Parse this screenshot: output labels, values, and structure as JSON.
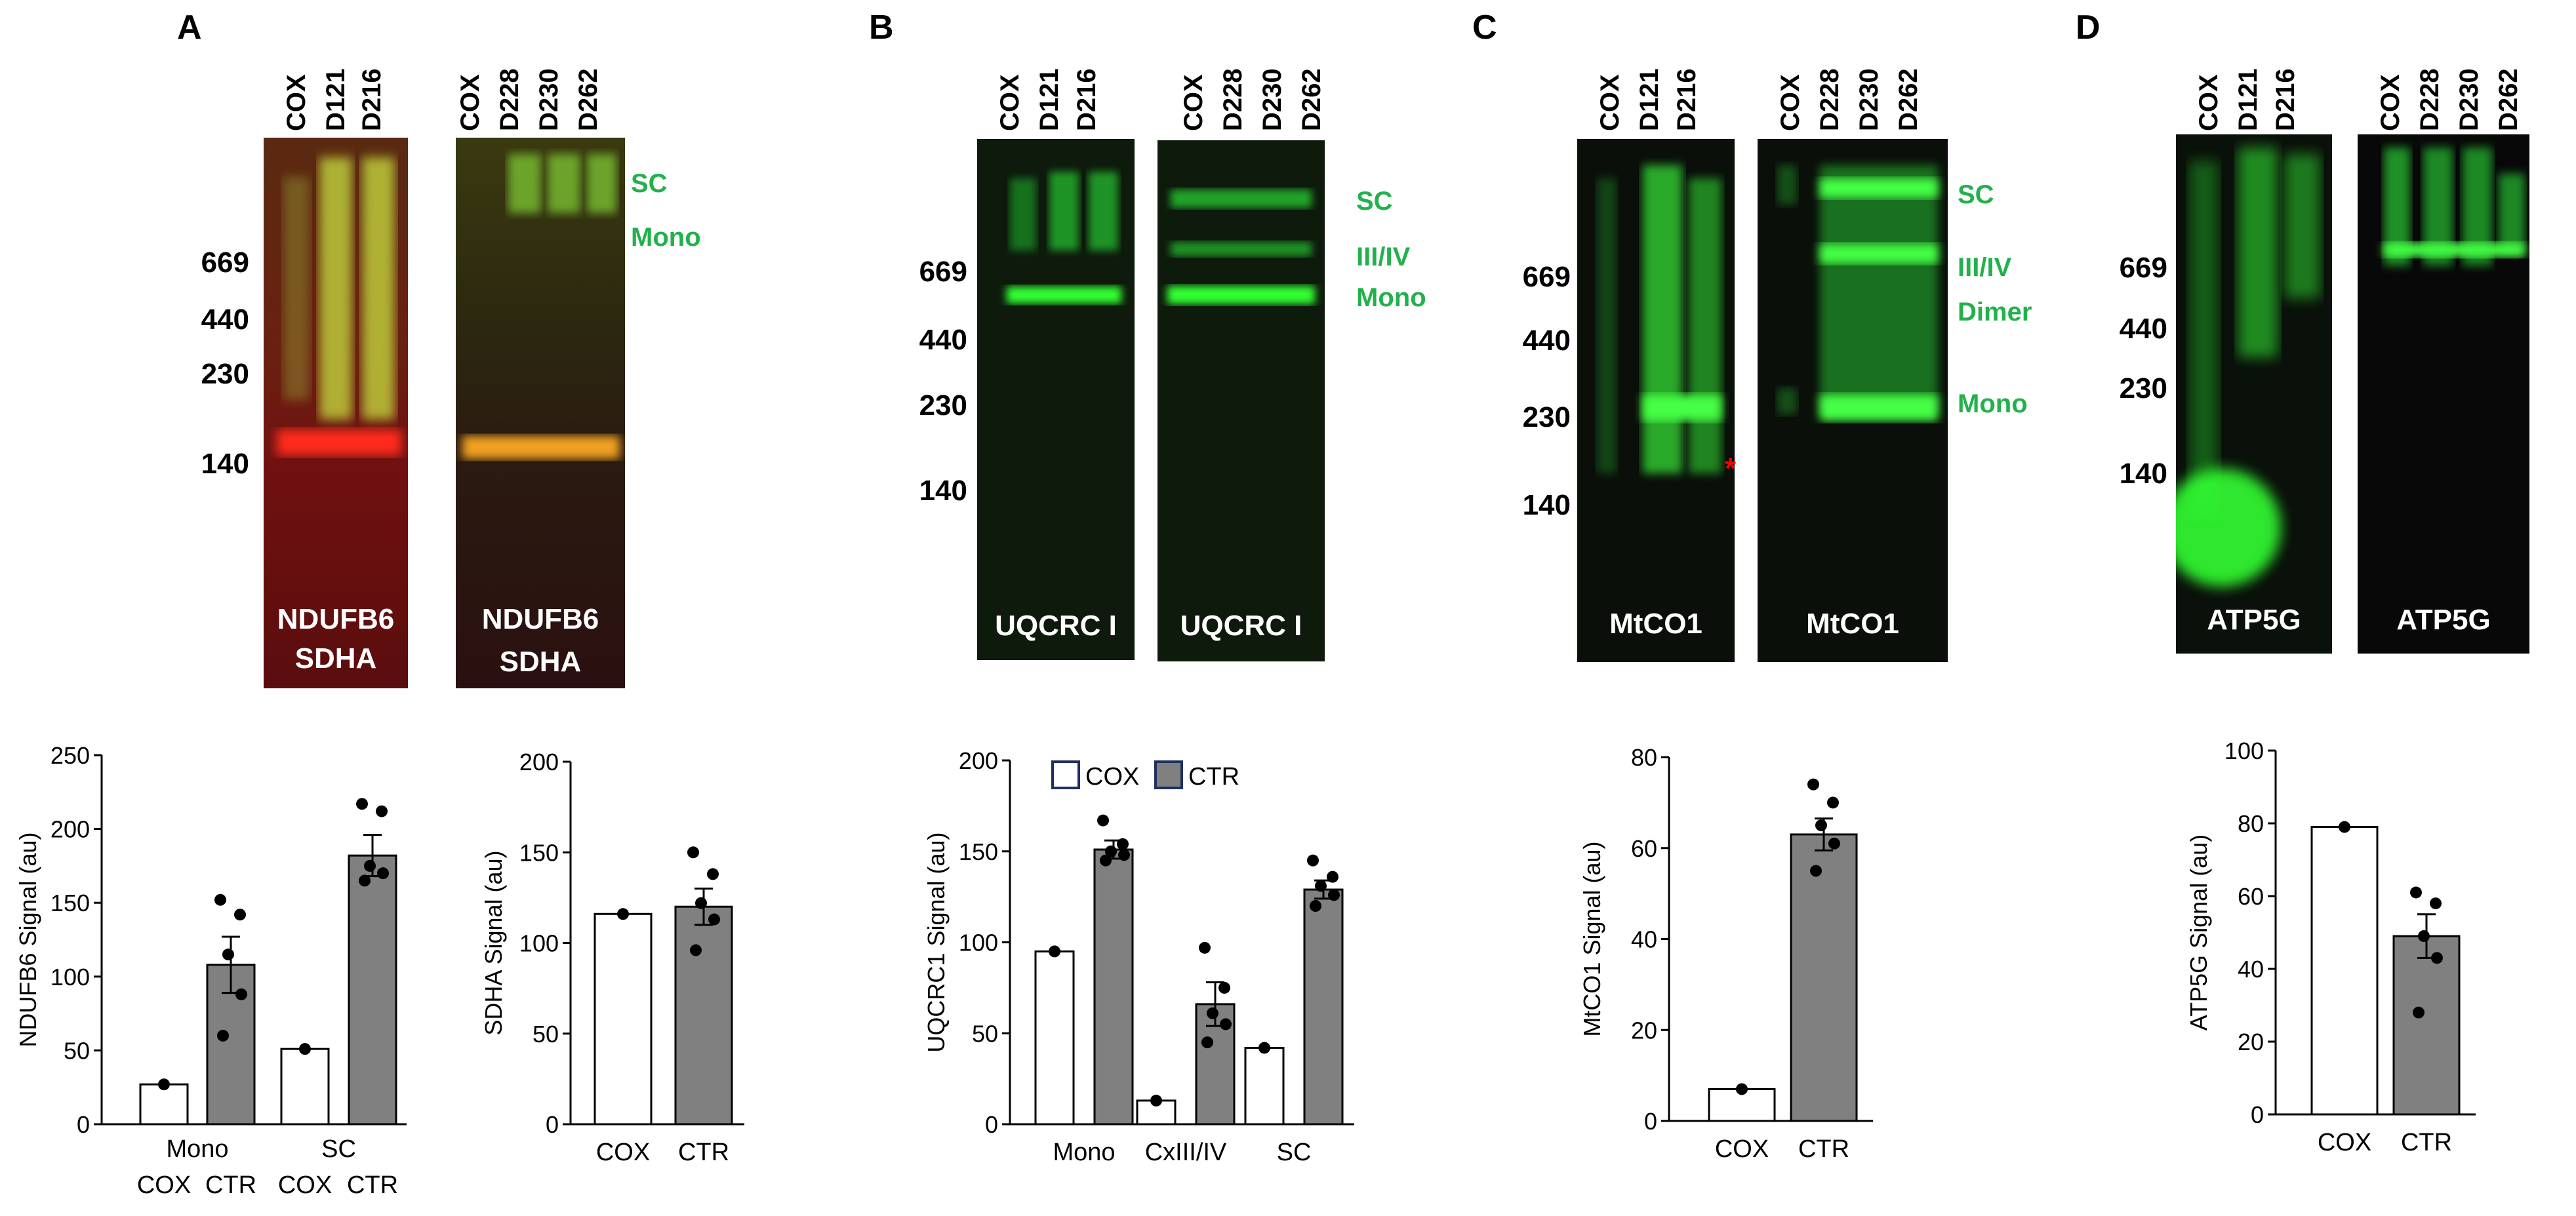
{
  "panels": [
    {
      "letter": "A"
    },
    {
      "letter": "B"
    },
    {
      "letter": "C"
    },
    {
      "letter": "D"
    }
  ],
  "lanes": {
    "left": [
      "COX",
      "D121",
      "D216"
    ],
    "right": [
      "COX",
      "D228",
      "D230",
      "D262"
    ]
  },
  "mw_markers": {
    "A": [
      "669",
      "440",
      "230",
      "140"
    ],
    "B": [
      "669",
      "440",
      "230",
      "140"
    ],
    "C": [
      "669",
      "440",
      "230",
      "140"
    ],
    "D": [
      "669",
      "440",
      "230",
      "140"
    ]
  },
  "band_labels": {
    "A": [
      "SC",
      "Mono"
    ],
    "B": [
      "SC",
      "III/IV",
      "Mono"
    ],
    "C": [
      "SC",
      "III/IV",
      "Dimer",
      "Mono"
    ]
  },
  "blot_labels": {
    "A1": [
      "NDUFB6",
      "SDHA"
    ],
    "A2": [
      "NDUFB6",
      "SDHA"
    ],
    "B1": [
      "UQCRC I"
    ],
    "B2": [
      "UQCRC I"
    ],
    "C1": [
      "MtCO1"
    ],
    "C2": [
      "MtCO1"
    ],
    "D1": [
      "ATP5G"
    ],
    "D2": [
      "ATP5G"
    ]
  },
  "colors": {
    "accent_green": "#22b14c",
    "bar_cox": "#ffffff",
    "bar_ctr": "#808080",
    "blot_green": "#00ff00",
    "marker_red": "#ff0000"
  },
  "chart_data": [
    {
      "type": "bar",
      "ylabel": "NDUFB6 Signal (au)",
      "ylim": [
        0,
        250
      ],
      "yticks": [
        0,
        50,
        100,
        150,
        200,
        250
      ],
      "groups": [
        "Mono",
        "SC"
      ],
      "categories": [
        "COX",
        "CTR",
        "COX",
        "CTR"
      ],
      "values": [
        27,
        108,
        51,
        182
      ],
      "error": [
        0,
        19,
        0,
        14
      ],
      "points": [
        [
          27
        ],
        [
          152,
          142,
          115,
          88,
          60
        ],
        [
          51
        ],
        [
          217,
          212,
          175,
          170,
          165
        ]
      ]
    },
    {
      "type": "bar",
      "ylabel": "SDHA Signal (au)",
      "ylim": [
        0,
        200
      ],
      "yticks": [
        0,
        50,
        100,
        150,
        200
      ],
      "categories": [
        "COX",
        "CTR"
      ],
      "values": [
        116,
        120
      ],
      "error": [
        0,
        10
      ],
      "points": [
        [
          116
        ],
        [
          150,
          138,
          122,
          113,
          96
        ]
      ]
    },
    {
      "type": "bar",
      "ylabel": "UQCRC1 Signal (au)",
      "ylim": [
        0,
        200
      ],
      "yticks": [
        0,
        50,
        100,
        150,
        200
      ],
      "legend": [
        "COX",
        "CTR"
      ],
      "categories": [
        "Mono",
        "CxIII/IV",
        "SC"
      ],
      "values": [
        [
          95,
          151
        ],
        [
          13,
          66
        ],
        [
          42,
          129
        ]
      ],
      "error": [
        [
          0,
          5
        ],
        [
          0,
          12
        ],
        [
          0,
          5
        ]
      ],
      "points": [
        [
          [
            95
          ],
          [
            167,
            154,
            150,
            148,
            145
          ]
        ],
        [
          [
            13
          ],
          [
            97,
            75,
            61,
            55,
            45
          ]
        ],
        [
          [
            42
          ],
          [
            145,
            136,
            131,
            126,
            120
          ]
        ]
      ]
    },
    {
      "type": "bar",
      "ylabel": "MtCO1 Signal (au)",
      "ylim": [
        0,
        80
      ],
      "yticks": [
        0,
        20,
        40,
        60,
        80
      ],
      "categories": [
        "COX",
        "CTR"
      ],
      "values": [
        7,
        63
      ],
      "error": [
        0,
        3.5
      ],
      "points": [
        [
          7
        ],
        [
          74,
          70,
          65,
          61,
          55
        ]
      ]
    },
    {
      "type": "bar",
      "ylabel": "ATP5G Signal (au)",
      "ylim": [
        0,
        100
      ],
      "yticks": [
        0,
        20,
        40,
        60,
        80,
        100
      ],
      "categories": [
        "COX",
        "CTR"
      ],
      "values": [
        79,
        49
      ],
      "error": [
        0,
        6
      ],
      "points": [
        [
          79
        ],
        [
          61,
          58,
          49,
          43,
          28
        ]
      ]
    }
  ]
}
